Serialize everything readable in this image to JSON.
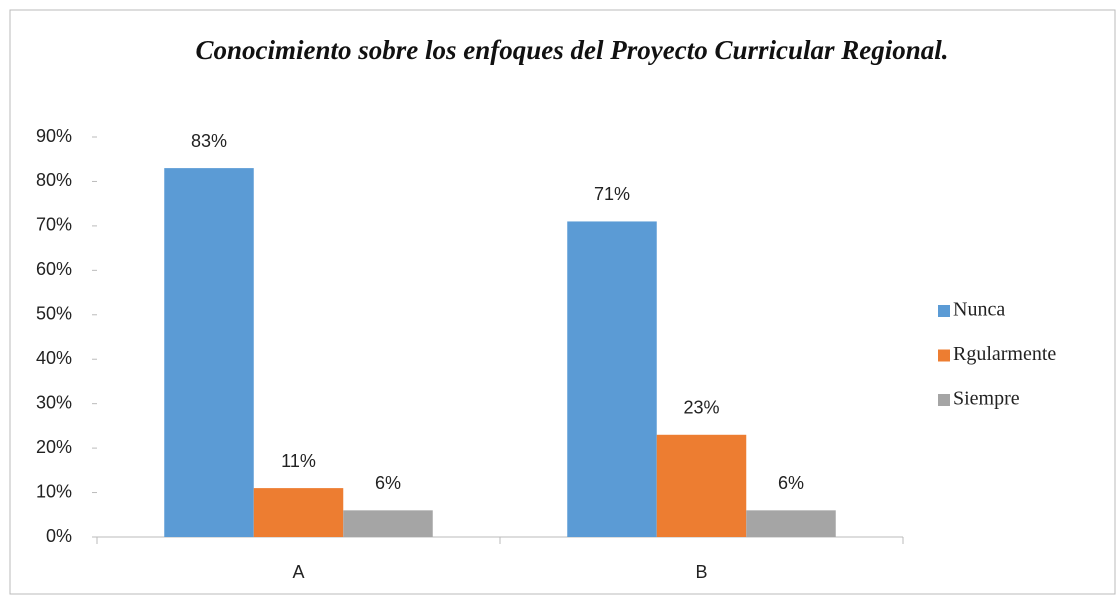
{
  "chart_data": {
    "type": "bar",
    "title": "Conocimiento sobre los enfoques del Proyecto Curricular Regional.",
    "categories": [
      "A",
      "B"
    ],
    "series": [
      {
        "name": "Nunca",
        "color": "#5b9bd5",
        "values": [
          83,
          71
        ],
        "value_labels": [
          "83%",
          "71%"
        ]
      },
      {
        "name": "Rgularmente",
        "color": "#ed7d31",
        "values": [
          11,
          23
        ],
        "value_labels": [
          "11%",
          "23%"
        ]
      },
      {
        "name": "Siempre",
        "color": "#a5a5a5",
        "values": [
          6,
          6
        ],
        "value_labels": [
          "6%",
          "6%"
        ]
      }
    ],
    "ylim": [
      0,
      90
    ],
    "yticks": [
      {
        "value": 0,
        "label": "0%"
      },
      {
        "value": 10,
        "label": "10%"
      },
      {
        "value": 20,
        "label": "20%"
      },
      {
        "value": 30,
        "label": "30%"
      },
      {
        "value": 40,
        "label": "40%"
      },
      {
        "value": 50,
        "label": "50%"
      },
      {
        "value": 60,
        "label": "60%"
      },
      {
        "value": 70,
        "label": "70%"
      },
      {
        "value": 80,
        "label": "80%"
      },
      {
        "value": 90,
        "label": "90%"
      }
    ],
    "legend": "right"
  }
}
